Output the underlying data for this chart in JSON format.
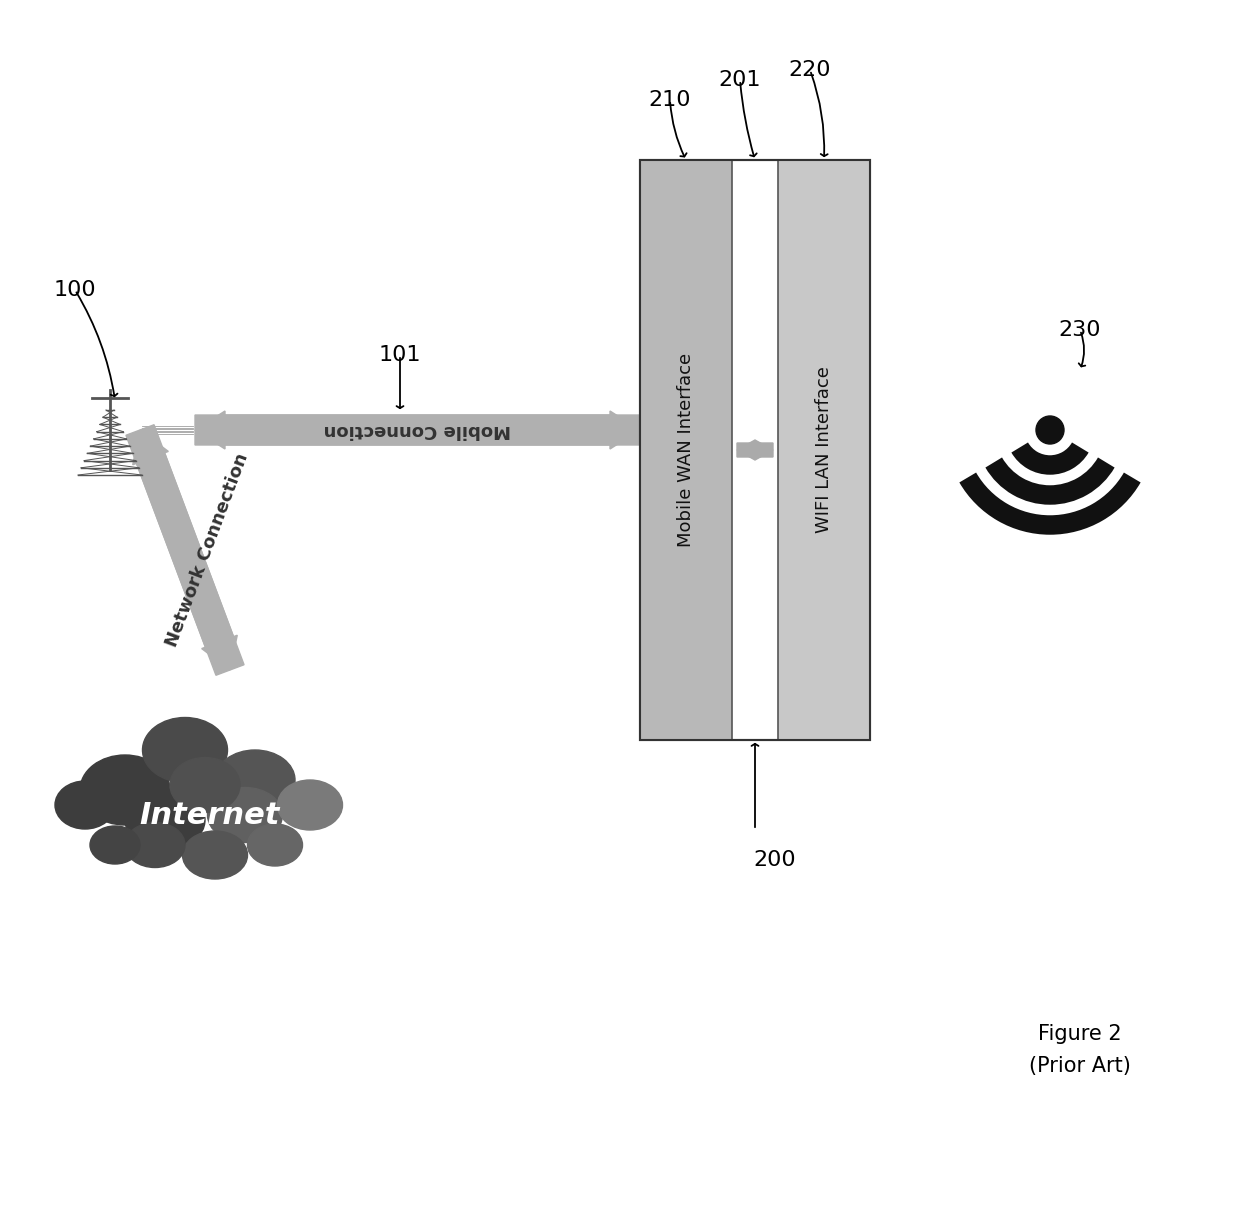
{
  "bg_color": "#ffffff",
  "figure_label": "Figure 2\n(Prior Art)",
  "mobile_connection_text": "Mobile Connection",
  "network_connection_text": "Network Connection",
  "mobile_wan_text": "Mobile WAN Interface",
  "wifi_lan_text": "WIFI LAN Interface",
  "internet_text": "Internet",
  "arrow_color": "#b0b0b0",
  "box_left_color": "#b8b8b8",
  "box_right_color": "#c8c8c8",
  "cloud_colors": [
    "#4a4a4a",
    "#5a5a5a",
    "#6a6a6a",
    "#7a7a7a",
    "#8a8a8a",
    "#9a9a9a",
    "#aaaaaa",
    "#bbbbbb"
  ],
  "tower_color": "#555555",
  "label_fontsize": 16,
  "caption_fontsize": 15,
  "interface_fontsize": 13,
  "arrow_text_fontsize": 13
}
